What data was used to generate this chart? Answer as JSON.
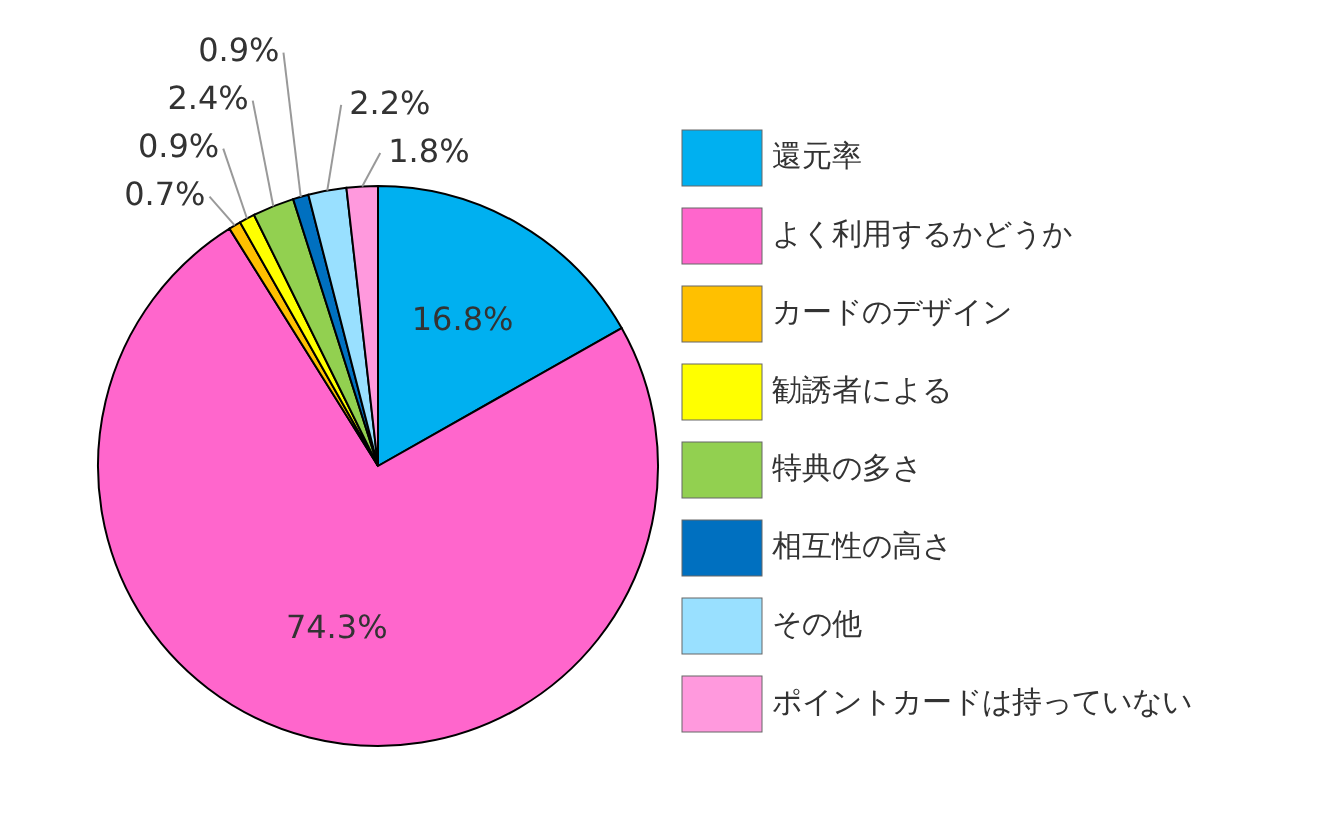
{
  "chart_data": {
    "type": "pie",
    "categories": [
      "還元率",
      "よく利用するかどうか",
      "カードのデザイン",
      "勧誘者による",
      "特典の多さ",
      "相互性の高さ",
      "その他",
      "ポイントカードは持っていない"
    ],
    "values": [
      16.8,
      74.3,
      0.7,
      0.9,
      2.4,
      0.9,
      2.2,
      1.8
    ],
    "colors": [
      "#00b0f0",
      "#ff66cc",
      "#ffc000",
      "#ffff00",
      "#92d050",
      "#0070c0",
      "#99e0ff",
      "#ff99dd"
    ],
    "value_labels": [
      "16.8%",
      "74.3%",
      "0.7%",
      "0.9%",
      "2.4%",
      "0.9%",
      "2.2%",
      "1.8%"
    ],
    "legend": "right"
  }
}
